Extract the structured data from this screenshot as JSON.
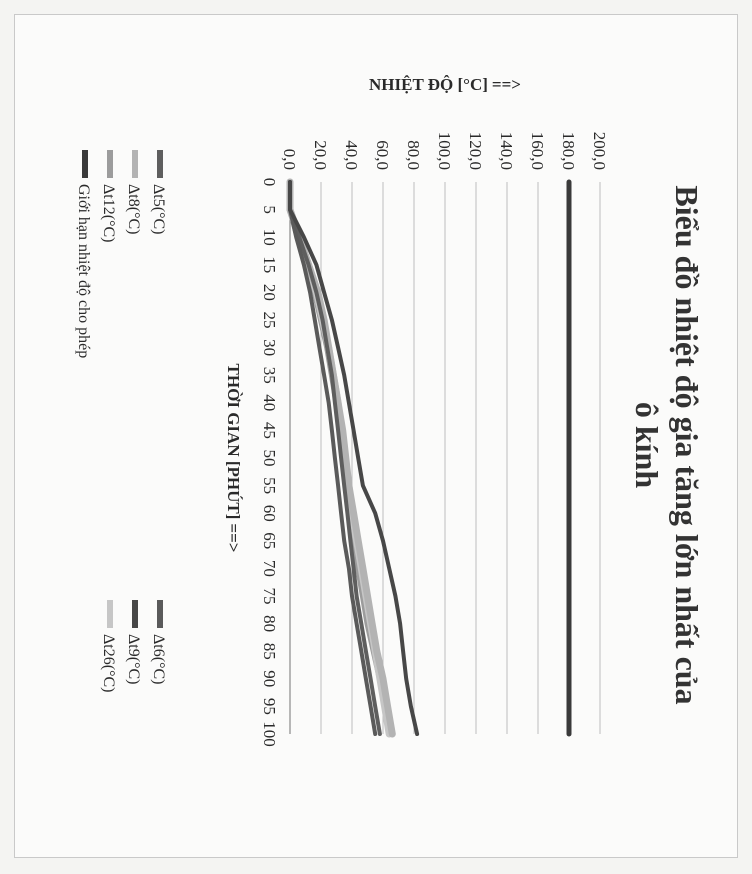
{
  "chart_data": {
    "type": "line",
    "title": "Biểu đồ nhiệt độ gia tăng lớn nhất của ô kính",
    "title_lines": [
      "Biểu đồ nhiệt độ gia tăng lớn nhất của",
      "ô kính"
    ],
    "xlabel": "THỜI GIAN [PHÚT]",
    "ylabel": "NHIỆT ĐỘ [°C]",
    "arrow": "==>",
    "x": [
      0,
      5,
      10,
      15,
      20,
      25,
      30,
      35,
      40,
      45,
      50,
      55,
      60,
      65,
      70,
      75,
      80,
      85,
      90,
      95,
      100
    ],
    "x_tick_labels": [
      "0",
      "5",
      "10",
      "15",
      "20",
      "25",
      "30",
      "35",
      "40",
      "45",
      "50",
      "55",
      "60",
      "65",
      "70",
      "75",
      "80",
      "85",
      "90",
      "95",
      "100"
    ],
    "y_tick_labels": [
      "0,0",
      "20,0",
      "40,0",
      "60,0",
      "80,0",
      "100,0",
      "120,0",
      "140,0",
      "160,0",
      "180,0",
      "200,0"
    ],
    "ylim": [
      0,
      200
    ],
    "grid": true,
    "orientation": "rotated-90-clockwise",
    "legend_position": "bottom",
    "series": [
      {
        "name": "Δt5(°C)",
        "color": "#5e5e5e",
        "values": [
          0,
          0,
          6,
          12,
          17,
          21,
          24,
          27,
          29,
          31,
          33,
          35,
          37,
          39,
          41,
          43,
          46,
          49,
          52,
          55,
          58
        ]
      },
      {
        "name": "Δt6(°C)",
        "color": "#5a5a5a",
        "values": [
          0,
          0,
          4,
          9,
          13,
          16,
          19,
          22,
          25,
          27,
          29,
          31,
          33,
          35,
          38,
          40,
          43,
          46,
          49,
          52,
          55
        ]
      },
      {
        "name": "Δt8(°C)",
        "color": "#b3b3b3",
        "values": [
          0,
          0,
          6,
          12,
          18,
          22,
          25,
          28,
          31,
          34,
          36,
          38,
          41,
          44,
          47,
          50,
          53,
          56,
          60,
          63,
          66
        ]
      },
      {
        "name": "Δt9(°C)",
        "color": "#474747",
        "values": [
          0,
          0,
          9,
          17,
          22,
          27,
          31,
          35,
          38,
          41,
          44,
          47,
          55,
          60,
          64,
          68,
          71,
          73,
          75,
          78,
          82
        ]
      },
      {
        "name": "Δt12(°C)",
        "color": "#9c9c9c",
        "values": [
          0,
          0,
          5,
          11,
          16,
          20,
          24,
          27,
          30,
          33,
          35,
          37,
          39,
          41,
          44,
          47,
          50,
          54,
          58,
          62,
          66
        ]
      },
      {
        "name": "Δt26(°C)",
        "color": "#c6c6c6",
        "values": [
          0,
          0,
          6,
          12,
          17,
          21,
          25,
          28,
          31,
          33,
          35,
          38,
          40,
          43,
          46,
          49,
          52,
          55,
          58,
          61,
          64
        ]
      },
      {
        "name": "Giới hạn nhiệt độ cho phép",
        "color": "#3a3a3a",
        "values": [
          180,
          180,
          180,
          180,
          180,
          180,
          180,
          180,
          180,
          180,
          180,
          180,
          180,
          180,
          180,
          180,
          180,
          180,
          180,
          180,
          180
        ]
      }
    ]
  }
}
